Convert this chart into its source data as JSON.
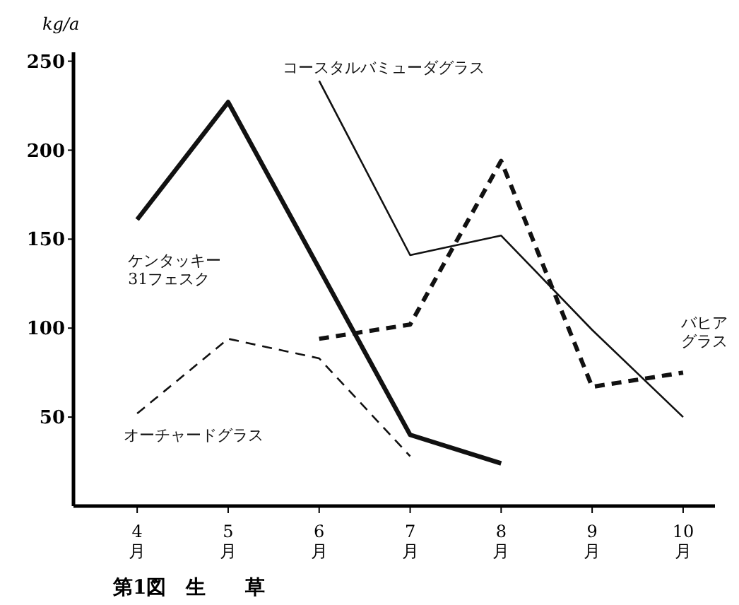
{
  "chart_data": {
    "type": "line",
    "title": "第1図　生　　草",
    "ylabel": "kg/a",
    "xlim": [
      3.3,
      10.35
    ],
    "ylim": [
      0,
      255
    ],
    "xticks": [
      {
        "value": 4,
        "label": "4月"
      },
      {
        "value": 5,
        "label": "5月"
      },
      {
        "value": 6,
        "label": "6月"
      },
      {
        "value": 7,
        "label": "7月"
      },
      {
        "value": 8,
        "label": "8月"
      },
      {
        "value": 9,
        "label": "9月"
      },
      {
        "value": 10,
        "label": "10月"
      }
    ],
    "yticks": [
      50,
      100,
      150,
      200,
      250
    ],
    "grid": false,
    "series": [
      {
        "name": "ケンタッキー31フェスク",
        "color": "#111111",
        "line_style": "solid",
        "x": [
          4,
          5,
          7,
          8
        ],
        "values": [
          161,
          227,
          40,
          24
        ]
      },
      {
        "name": "コースタルバミューダグラス",
        "color": "#111111",
        "line_style": "solid",
        "x": [
          6,
          7,
          8,
          9,
          10
        ],
        "values": [
          239,
          141,
          152,
          99,
          50
        ]
      },
      {
        "name": "オーチャードグラス",
        "color": "#111111",
        "line_style": "dashed",
        "x": [
          4,
          5,
          6,
          7
        ],
        "values": [
          52,
          94,
          83,
          28
        ]
      },
      {
        "name": "バヒアグラス",
        "color": "#111111",
        "line_style": "dashed",
        "x": [
          6,
          7,
          8,
          9,
          10
        ],
        "values": [
          94,
          102,
          194,
          67,
          75
        ]
      }
    ]
  }
}
